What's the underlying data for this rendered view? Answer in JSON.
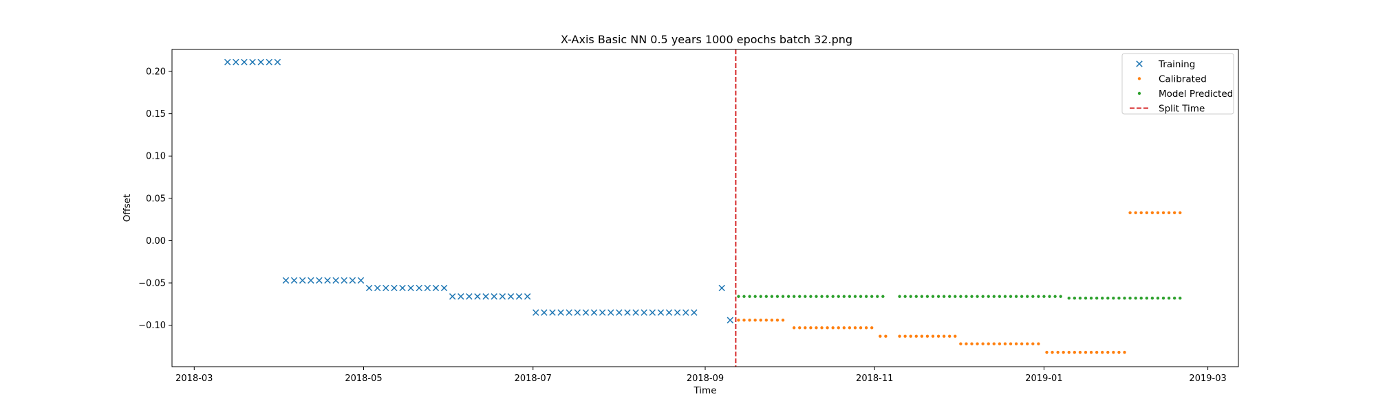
{
  "chart_data": {
    "type": "scatter",
    "title": "X-Axis Basic NN 0.5 years 1000 epochs batch 32.png",
    "xlabel": "Time",
    "ylabel": "Offset",
    "x_axis_type": "date",
    "xlim": [
      "2018-02-21",
      "2019-03-12"
    ],
    "ylim": [
      -0.149,
      0.226
    ],
    "x_ticks": [
      "2018-03",
      "2018-05",
      "2018-07",
      "2018-09",
      "2018-11",
      "2019-01",
      "2019-03"
    ],
    "y_ticks": [
      0.2,
      0.15,
      0.1,
      0.05,
      0.0,
      -0.05,
      -0.1
    ],
    "y_tick_labels": [
      "0.20",
      "0.15",
      "0.10",
      "0.05",
      "0.00",
      "−0.05",
      "−0.10"
    ],
    "grid": false,
    "legend_position": "top-right",
    "split_time": "2018-09-12",
    "series": [
      {
        "name": "Training",
        "marker": "x",
        "color": "#1f77b4",
        "segments": [
          {
            "from": "2018-03-13",
            "to": "2018-03-31",
            "step_days": 3,
            "y": 0.211
          },
          {
            "from": "2018-04-03",
            "to": "2018-04-30",
            "step_days": 3,
            "y": -0.047
          },
          {
            "from": "2018-05-03",
            "to": "2018-05-30",
            "step_days": 3,
            "y": -0.056
          },
          {
            "from": "2018-06-02",
            "to": "2018-06-29",
            "step_days": 3,
            "y": -0.066
          },
          {
            "from": "2018-07-02",
            "to": "2018-08-28",
            "step_days": 3,
            "y": -0.085
          }
        ],
        "points": [
          {
            "x": "2018-09-07",
            "y": -0.056
          },
          {
            "x": "2018-09-10",
            "y": -0.094
          }
        ]
      },
      {
        "name": "Calibrated",
        "marker": "dot",
        "color": "#ff7f0e",
        "segments": [
          {
            "from": "2018-09-13",
            "to": "2018-09-30",
            "step_days": 2,
            "y": -0.094
          },
          {
            "from": "2018-10-03",
            "to": "2018-10-31",
            "step_days": 2,
            "y": -0.103
          },
          {
            "from": "2018-11-03",
            "to": "2018-11-05",
            "step_days": 2,
            "y": -0.113
          },
          {
            "from": "2018-11-10",
            "to": "2018-11-30",
            "step_days": 2,
            "y": -0.113
          },
          {
            "from": "2018-12-02",
            "to": "2018-12-30",
            "step_days": 2,
            "y": -0.122
          },
          {
            "from": "2019-01-02",
            "to": "2019-01-30",
            "step_days": 2,
            "y": -0.132
          },
          {
            "from": "2019-02-01",
            "to": "2019-02-19",
            "step_days": 2,
            "y": 0.033
          }
        ],
        "points": []
      },
      {
        "name": "Model Predicted",
        "marker": "dot",
        "color": "#2ca02c",
        "segments": [
          {
            "from": "2018-09-13",
            "to": "2018-11-05",
            "step_days": 2,
            "y": -0.066
          },
          {
            "from": "2018-11-10",
            "to": "2019-01-08",
            "step_days": 2,
            "y": -0.066
          },
          {
            "from": "2019-01-10",
            "to": "2019-02-19",
            "step_days": 2,
            "y": -0.068
          }
        ],
        "points": []
      },
      {
        "name": "Split Time",
        "type": "vline",
        "linestyle": "dashed",
        "color": "#d62728",
        "x": "2018-09-12"
      }
    ]
  }
}
